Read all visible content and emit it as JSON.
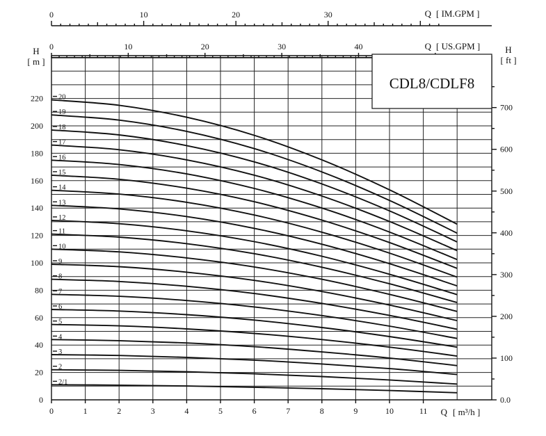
{
  "chart_data": {
    "type": "line",
    "title": "CDL8/CDLF8",
    "x_axis": {
      "label": "Q",
      "unit": "[ m³/h ]",
      "range": [
        0,
        12
      ],
      "ticks": [
        "0",
        "1",
        "2",
        "3",
        "4",
        "5",
        "6",
        "7",
        "8",
        "9",
        "10",
        "11"
      ]
    },
    "top_axis_im": {
      "label": "Q",
      "unit": "[ IM.GPM ]",
      "ticks": [
        "0",
        "10",
        "20",
        "30"
      ],
      "values": [
        0,
        10,
        20,
        30
      ]
    },
    "top_axis_us": {
      "label": "Q",
      "unit": "[ US.GPM ]",
      "ticks": [
        "0",
        "10",
        "20",
        "30",
        "40"
      ],
      "values": [
        0,
        10,
        20,
        30,
        40
      ]
    },
    "y_axis_left": {
      "label": "H",
      "unit": "[ m ]",
      "range": [
        0,
        240
      ],
      "ticks": [
        "0",
        "20",
        "40",
        "60",
        "80",
        "100",
        "120",
        "140",
        "160",
        "180",
        "200",
        "220"
      ]
    },
    "y_axis_right": {
      "label": "H",
      "unit": "[ ft ]",
      "ticks": [
        "0.0",
        "100",
        "200",
        "300",
        "400",
        "500",
        "600",
        "700"
      ],
      "values": [
        0,
        100,
        200,
        300,
        400,
        500,
        600,
        700
      ]
    },
    "x": [
      0,
      2,
      4,
      6,
      8,
      10,
      12
    ],
    "series": [
      {
        "name": "2/1",
        "values": [
          11,
          10.7,
          10.1,
          9.2,
          8.1,
          6.8,
          5.2
        ]
      },
      {
        "name": "2",
        "values": [
          22,
          21.5,
          20.5,
          19,
          17,
          14.5,
          11.5
        ]
      },
      {
        "name": "3",
        "values": [
          33,
          32.4,
          31,
          29,
          26.2,
          22.8,
          18.5
        ]
      },
      {
        "name": "4",
        "values": [
          44,
          43.2,
          41.5,
          38.8,
          35,
          30.5,
          25
        ]
      },
      {
        "name": "5",
        "values": [
          55,
          54,
          51.8,
          48.5,
          44,
          38.5,
          32
        ]
      },
      {
        "name": "6",
        "values": [
          66,
          64.8,
          62.2,
          58.2,
          52.8,
          46.2,
          38.5
        ]
      },
      {
        "name": "7",
        "values": [
          77,
          75.6,
          72.5,
          67.8,
          61.5,
          53.8,
          44.8
        ]
      },
      {
        "name": "8",
        "values": [
          88,
          86.4,
          82.9,
          77.6,
          70.4,
          61.6,
          51.5
        ]
      },
      {
        "name": "9",
        "values": [
          99,
          97.2,
          93.2,
          87.2,
          79.1,
          69.2,
          57.8
        ]
      },
      {
        "name": "10",
        "values": [
          110,
          108,
          103.6,
          97,
          88,
          77,
          64.5
        ]
      },
      {
        "name": "11",
        "values": [
          121,
          118.8,
          114,
          106.7,
          96.8,
          84.7,
          71
        ]
      },
      {
        "name": "12",
        "values": [
          131,
          128.6,
          123.4,
          115.5,
          104.8,
          91.7,
          76.8
        ]
      },
      {
        "name": "13",
        "values": [
          142,
          139.4,
          133.8,
          125.2,
          113.6,
          99.4,
          83.2
        ]
      },
      {
        "name": "14",
        "values": [
          153,
          150.2,
          144.2,
          134.9,
          122.4,
          107.1,
          89.6
        ]
      },
      {
        "name": "15",
        "values": [
          164,
          161,
          154.5,
          144.6,
          131.2,
          114.8,
          96
        ]
      },
      {
        "name": "16",
        "values": [
          175,
          171.8,
          164.9,
          154.3,
          140,
          122.5,
          102.4
        ]
      },
      {
        "name": "17",
        "values": [
          186,
          182.6,
          175.2,
          164,
          148.8,
          130.2,
          108.9
        ]
      },
      {
        "name": "18",
        "values": [
          197,
          193.4,
          185.6,
          173.7,
          157.6,
          137.9,
          115.3
        ]
      },
      {
        "name": "19",
        "values": [
          208,
          204.2,
          196,
          183.4,
          166.4,
          145.6,
          121.7
        ]
      },
      {
        "name": "20",
        "values": [
          219,
          215,
          206.3,
          193.1,
          175.2,
          153.3,
          128.2
        ]
      }
    ]
  }
}
